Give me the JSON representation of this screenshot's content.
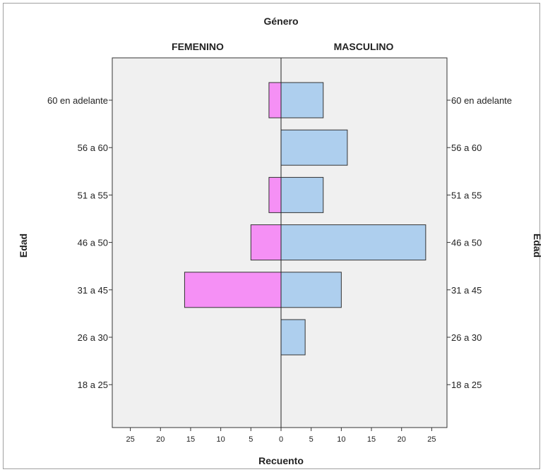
{
  "chart_data": {
    "type": "bar",
    "orientation": "horizontal-pyramid",
    "title": "Género",
    "xlabel": "Recuento",
    "ylabel_left": "Edad",
    "ylabel_right": "Edad",
    "panels": [
      "FEMENINO",
      "MASCULINO"
    ],
    "categories": [
      "60 en adelante",
      "56 a 60",
      "51 a 55",
      "46 a 50",
      "31 a 45",
      "26 a 30",
      "18 a 25"
    ],
    "series": [
      {
        "name": "FEMENINO",
        "color": "#f590f5",
        "values": [
          2,
          0,
          2,
          5,
          16,
          0,
          0
        ]
      },
      {
        "name": "MASCULINO",
        "color": "#aecfee",
        "values": [
          7,
          11,
          7,
          24,
          10,
          4,
          0
        ]
      }
    ],
    "x_ticks_left": [
      25,
      20,
      15,
      10,
      5,
      0
    ],
    "x_ticks_right": [
      0,
      5,
      10,
      15,
      20,
      25
    ],
    "xlim": [
      0,
      28
    ],
    "plot_background": "#f0f0f0"
  }
}
